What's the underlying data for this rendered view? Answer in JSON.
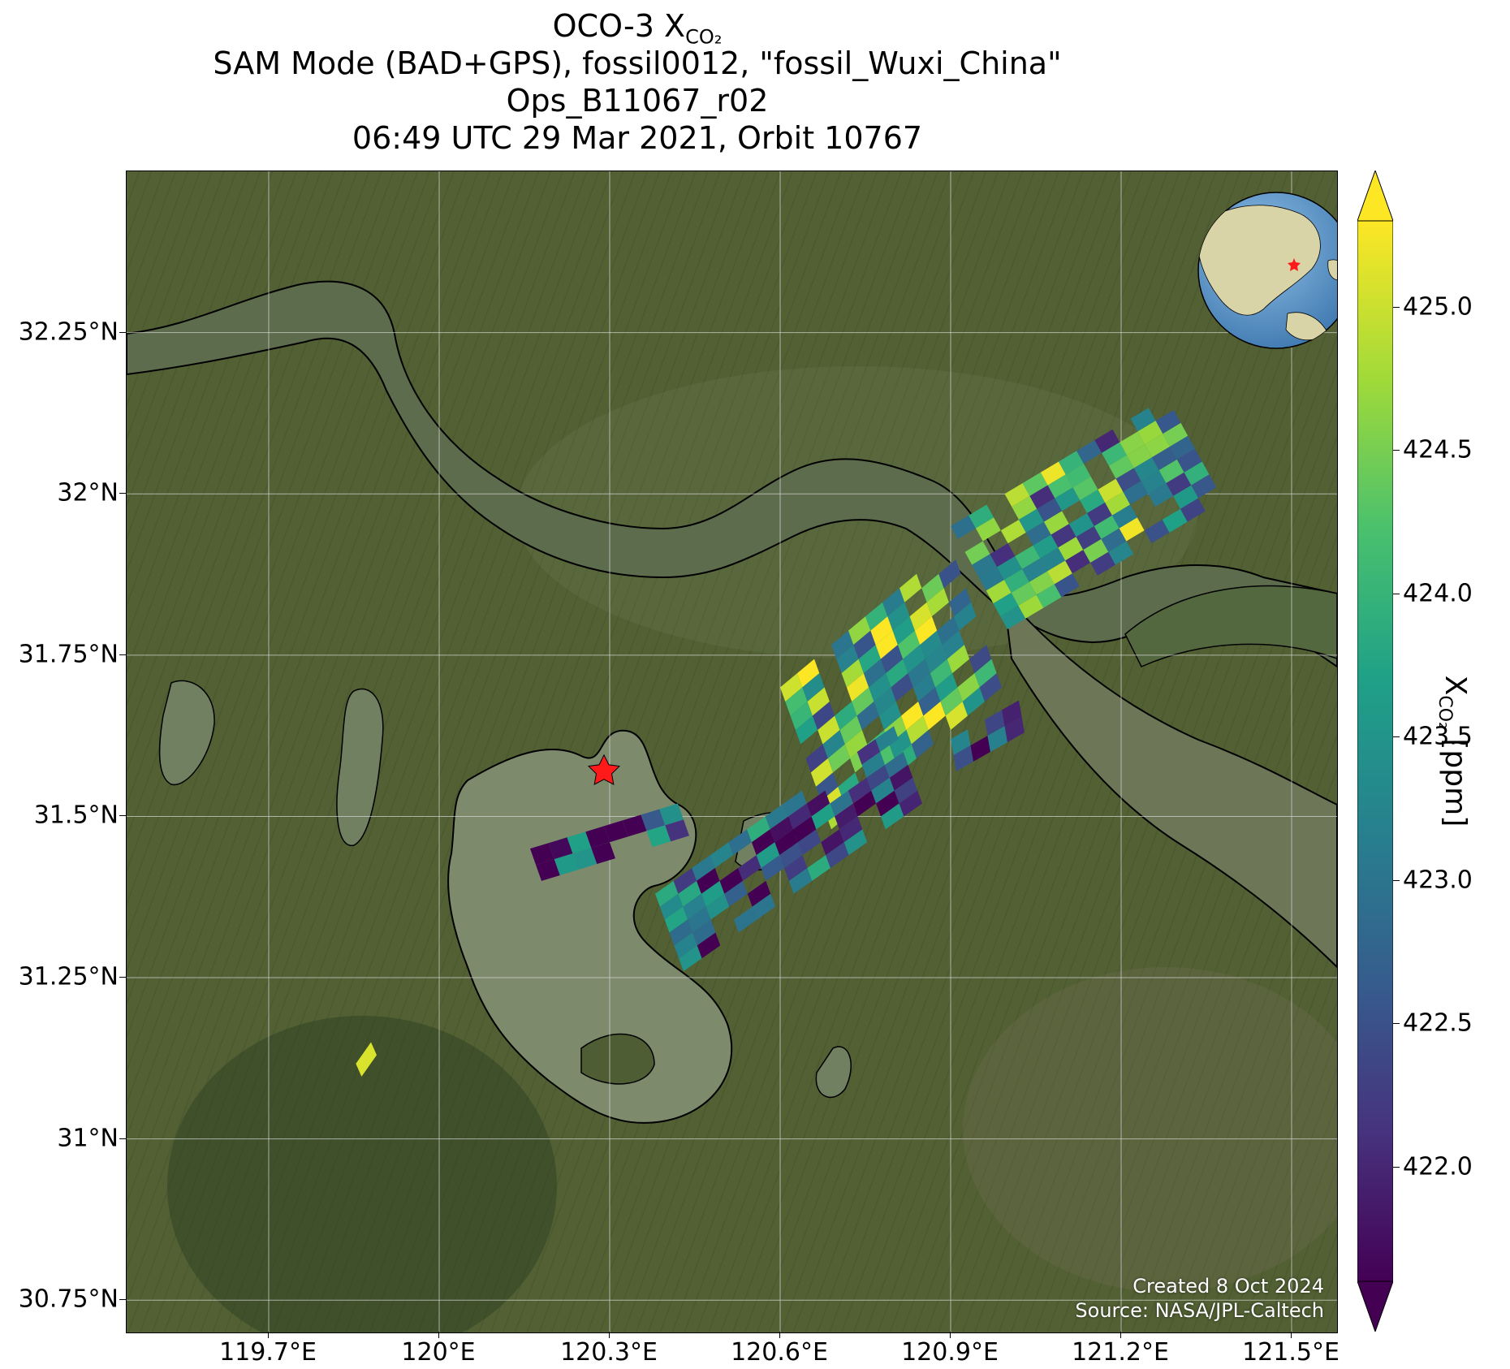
{
  "title": {
    "line1_prefix": "OCO-3 X",
    "line1_sub": "CO₂",
    "line2": "SAM Mode (BAD+GPS), fossil0012, \"fossil_Wuxi_China\"",
    "line3": "Ops_B11067_r02",
    "line4": "06:49 UTC 29 Mar 2021, Orbit 10767"
  },
  "credit": {
    "created": "Created 8 Oct 2024",
    "source": "Source: NASA/JPL-Caltech"
  },
  "map": {
    "lon_range": [
      119.45,
      121.58
    ],
    "lat_range": [
      30.7,
      32.5
    ],
    "lat_ticks": [
      {
        "value": 32.25,
        "label": "32.25°N"
      },
      {
        "value": 32.0,
        "label": "32°N"
      },
      {
        "value": 31.75,
        "label": "31.75°N"
      },
      {
        "value": 31.5,
        "label": "31.5°N"
      },
      {
        "value": 31.25,
        "label": "31.25°N"
      },
      {
        "value": 31.0,
        "label": "31°N"
      },
      {
        "value": 30.75,
        "label": "30.75°N"
      }
    ],
    "lon_ticks": [
      {
        "value": 119.7,
        "label": "119.7°E"
      },
      {
        "value": 120.0,
        "label": "120°E"
      },
      {
        "value": 120.3,
        "label": "120.3°E"
      },
      {
        "value": 120.6,
        "label": "120.6°E"
      },
      {
        "value": 120.9,
        "label": "120.9°E"
      },
      {
        "value": 121.2,
        "label": "121.2°E"
      },
      {
        "value": 121.5,
        "label": "121.5°E"
      }
    ],
    "target_marker": {
      "lon": 120.29,
      "lat": 31.57,
      "color": "#ff1a1a",
      "icon": "star-icon"
    },
    "colors": {
      "land": "#4f5d34",
      "water": "#5e6e4f",
      "lake": "#7d8a6c",
      "coast": "#000000",
      "grid": "#d8d8d8"
    },
    "inset_globe": {
      "icon": "globe-icon",
      "ocean": "#5d95c9",
      "land": "#d9d3a8"
    }
  },
  "colorbar": {
    "min": 421.6,
    "max": 425.3,
    "extend": "both",
    "colormap": "viridis",
    "ticks": [
      {
        "value": 422.0,
        "label": "422.0"
      },
      {
        "value": 422.5,
        "label": "422.5"
      },
      {
        "value": 423.0,
        "label": "423.0"
      },
      {
        "value": 423.5,
        "label": "423.5"
      },
      {
        "value": 424.0,
        "label": "424.0"
      },
      {
        "value": 424.5,
        "label": "424.5"
      },
      {
        "value": 425.0,
        "label": "425.0"
      }
    ],
    "label_prefix": "X",
    "label_sub": "CO₂",
    "label_suffix": " [ppm]"
  },
  "swaths": [
    {
      "name": "northeast-swath",
      "lon0": 120.9,
      "lat0": 31.95,
      "along": [
        0.38,
        0.2
      ],
      "across": [
        0.1,
        -0.16
      ],
      "rows": 12,
      "cols": 8,
      "seed": 11,
      "bias": 0.55
    },
    {
      "name": "central-swath",
      "lon0": 120.6,
      "lat0": 31.7,
      "along": [
        0.3,
        0.22
      ],
      "across": [
        0.09,
        -0.22
      ],
      "rows": 10,
      "cols": 10,
      "seed": 23,
      "bias": 0.62
    },
    {
      "name": "south-swath",
      "lon0": 120.38,
      "lat0": 31.38,
      "along": [
        0.42,
        0.26
      ],
      "across": [
        0.05,
        -0.12
      ],
      "rows": 13,
      "cols": 6,
      "seed": 37,
      "bias": 0.18
    },
    {
      "name": "lake-north-swath",
      "lon0": 120.16,
      "lat0": 31.45,
      "along": [
        0.26,
        0.07
      ],
      "across": [
        0.02,
        -0.05
      ],
      "rows": 8,
      "cols": 2,
      "seed": 51,
      "bias": 0.15
    },
    {
      "name": "east-fragment",
      "lon0": 120.9,
      "lat0": 31.62,
      "along": [
        0.12,
        0.06
      ],
      "across": [
        0.01,
        -0.05
      ],
      "rows": 4,
      "cols": 2,
      "seed": 63,
      "bias": 0.3
    },
    {
      "name": "southwest-fragment",
      "lon0": 119.8,
      "lat0": 31.05,
      "along": [
        0.08,
        0.1
      ],
      "across": [
        0.02,
        -0.04
      ],
      "rows": 3,
      "cols": 2,
      "seed": 71,
      "bias": 0.55
    }
  ]
}
